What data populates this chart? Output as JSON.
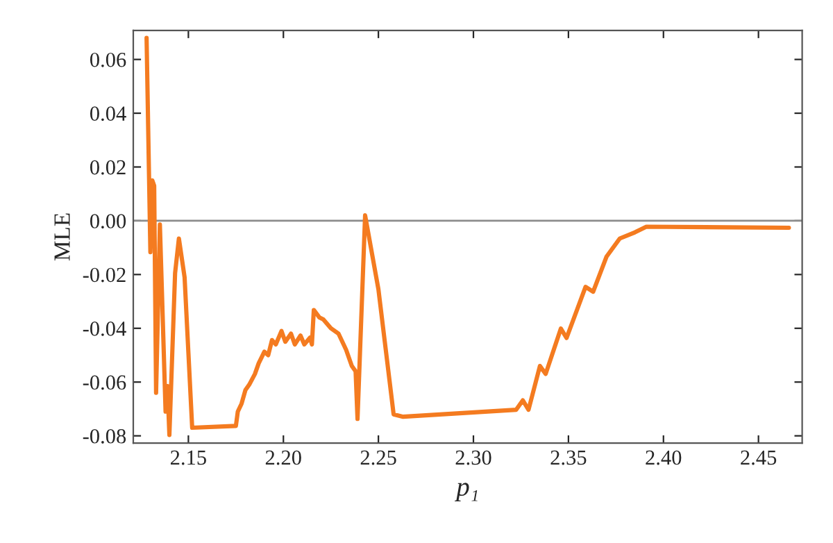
{
  "chart_data": {
    "type": "line",
    "xlabel": "p₁",
    "ylabel": "MLE",
    "x": [
      2.128,
      2.13,
      2.131,
      2.132,
      2.133,
      2.135,
      2.138,
      2.139,
      2.14,
      2.143,
      2.145,
      2.148,
      2.152,
      2.175,
      2.176,
      2.178,
      2.18,
      2.182,
      2.185,
      2.187,
      2.19,
      2.192,
      2.194,
      2.196,
      2.199,
      2.201,
      2.204,
      2.206,
      2.209,
      2.211,
      2.214,
      2.215,
      2.216,
      2.219,
      2.221,
      2.225,
      2.229,
      2.233,
      2.236,
      2.238,
      2.239,
      2.243,
      2.25,
      2.258,
      2.263,
      2.3225,
      2.326,
      2.329,
      2.335,
      2.338,
      2.346,
      2.349,
      2.359,
      2.363,
      2.37,
      2.377,
      2.385,
      2.391,
      2.466
    ],
    "series": [
      {
        "color": "#f47b20",
        "values": [
          0.068,
          -0.0117,
          0.015,
          0.013,
          -0.064,
          -0.0014,
          -0.071,
          -0.0615,
          -0.0797,
          -0.0195,
          -0.0066,
          -0.021,
          -0.077,
          -0.0763,
          -0.071,
          -0.068,
          -0.063,
          -0.061,
          -0.057,
          -0.053,
          -0.0487,
          -0.05,
          -0.0444,
          -0.046,
          -0.041,
          -0.045,
          -0.042,
          -0.046,
          -0.0427,
          -0.046,
          -0.0435,
          -0.046,
          -0.0332,
          -0.036,
          -0.0367,
          -0.04,
          -0.042,
          -0.048,
          -0.054,
          -0.056,
          -0.0737,
          0.002,
          -0.0255,
          -0.072,
          -0.0729,
          -0.0703,
          -0.0668,
          -0.0703,
          -0.054,
          -0.057,
          -0.0401,
          -0.0436,
          -0.0246,
          -0.0264,
          -0.0134,
          -0.0066,
          -0.0043,
          -0.0022,
          -0.0026
        ]
      }
    ],
    "xlim": [
      2.121,
      2.473
    ],
    "ylim": [
      -0.0827,
      0.0708
    ],
    "xticks": [
      {
        "value": 2.15,
        "label": "2.15"
      },
      {
        "value": 2.2,
        "label": "2.20"
      },
      {
        "value": 2.25,
        "label": "2.25"
      },
      {
        "value": 2.3,
        "label": "2.30"
      },
      {
        "value": 2.35,
        "label": "2.35"
      },
      {
        "value": 2.4,
        "label": "2.40"
      },
      {
        "value": 2.45,
        "label": "2.45"
      }
    ],
    "yticks": [
      {
        "value": 0.06,
        "label": "0.06"
      },
      {
        "value": 0.04,
        "label": "0.04"
      },
      {
        "value": 0.02,
        "label": "0.02"
      },
      {
        "value": 0,
        "label": "0.00"
      },
      {
        "value": -0.02,
        "label": "-0.02"
      },
      {
        "value": -0.04,
        "label": "-0.04"
      },
      {
        "value": -0.06,
        "label": "-0.06"
      },
      {
        "value": -0.08,
        "label": "-0.08"
      }
    ],
    "ref_lines": [
      {
        "axis": "y",
        "value": 0,
        "color": "#8c8c8c"
      }
    ],
    "grid": false,
    "legend": false,
    "marker": "none",
    "line_style": "solid"
  }
}
